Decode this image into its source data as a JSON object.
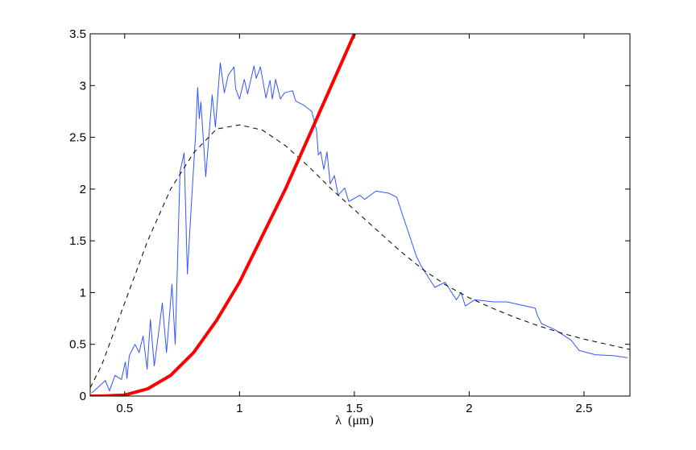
{
  "chart_data": {
    "type": "line",
    "title": "",
    "xlabel": "λ  (μm)",
    "ylabel": "",
    "xlim": [
      0.35,
      2.7
    ],
    "ylim": [
      0,
      3.5
    ],
    "xticks": [
      0.5,
      1,
      1.5,
      2,
      2.5
    ],
    "xtick_labels": [
      "0.5",
      "1",
      "1.5",
      "2",
      "2.5"
    ],
    "yticks": [
      0,
      0.5,
      1,
      1.5,
      2,
      2.5,
      3,
      3.5
    ],
    "ytick_labels": [
      "0",
      "0.5",
      "1",
      "1.5",
      "2",
      "2.5",
      "3",
      "3.5"
    ],
    "grid": false,
    "series": [
      {
        "style": "solid-thin",
        "color": "#3355ff",
        "x": [
          0.357,
          0.416,
          0.434,
          0.458,
          0.486,
          0.503,
          0.51,
          0.52,
          0.545,
          0.563,
          0.58,
          0.598,
          0.612,
          0.629,
          0.65,
          0.664,
          0.682,
          0.706,
          0.72,
          0.741,
          0.759,
          0.773,
          0.79,
          0.808,
          0.818,
          0.825,
          0.832,
          0.853,
          0.881,
          0.895,
          0.916,
          0.934,
          0.951,
          0.976,
          0.983,
          1.0,
          1.021,
          1.035,
          1.063,
          1.073,
          1.091,
          1.115,
          1.133,
          1.143,
          1.157,
          1.178,
          1.196,
          1.231,
          1.245,
          1.28,
          1.315,
          1.336,
          1.343,
          1.353,
          1.367,
          1.381,
          1.395,
          1.413,
          1.43,
          1.458,
          1.476,
          1.524,
          1.545,
          1.594,
          1.65,
          1.685,
          1.71,
          1.745,
          1.77,
          1.79,
          1.85,
          1.895,
          1.944,
          1.965,
          1.983,
          2.024,
          2.105,
          2.164,
          2.245,
          2.287,
          2.297,
          2.315,
          2.374,
          2.444,
          2.479,
          2.549,
          2.63,
          2.69
        ],
        "y": [
          0.03,
          0.15,
          0.05,
          0.2,
          0.16,
          0.33,
          0.17,
          0.39,
          0.5,
          0.42,
          0.58,
          0.26,
          0.74,
          0.29,
          0.65,
          0.9,
          0.42,
          1.08,
          0.5,
          2.17,
          2.35,
          1.18,
          1.83,
          2.5,
          2.98,
          2.68,
          2.84,
          2.12,
          2.91,
          2.6,
          3.22,
          2.93,
          3.1,
          3.18,
          2.97,
          2.87,
          3.06,
          2.92,
          3.19,
          3.07,
          3.18,
          2.88,
          3.05,
          2.87,
          3.06,
          2.87,
          2.93,
          2.95,
          2.85,
          2.81,
          2.75,
          2.56,
          2.33,
          2.36,
          2.19,
          2.36,
          2.05,
          2.13,
          1.94,
          2.01,
          1.88,
          1.94,
          1.9,
          1.98,
          1.96,
          1.92,
          1.75,
          1.52,
          1.35,
          1.26,
          1.05,
          1.1,
          0.93,
          1.0,
          0.87,
          0.93,
          0.91,
          0.91,
          0.87,
          0.85,
          0.78,
          0.7,
          0.64,
          0.54,
          0.44,
          0.4,
          0.39,
          0.37
        ]
      },
      {
        "style": "dashed",
        "color": "#000000",
        "x": [
          0.35,
          0.4,
          0.5,
          0.6,
          0.7,
          0.8,
          0.9,
          1.0,
          1.1,
          1.2,
          1.3,
          1.4,
          1.5,
          1.6,
          1.7,
          1.8,
          1.9,
          2.0,
          2.1,
          2.2,
          2.3,
          2.4,
          2.5,
          2.6,
          2.7
        ],
        "y": [
          0.08,
          0.3,
          0.9,
          1.5,
          2.0,
          2.35,
          2.58,
          2.62,
          2.57,
          2.42,
          2.22,
          2.0,
          1.8,
          1.6,
          1.4,
          1.22,
          1.07,
          0.95,
          0.85,
          0.76,
          0.68,
          0.61,
          0.55,
          0.5,
          0.45
        ]
      },
      {
        "style": "solid-thick",
        "color": "#ff0000",
        "x": [
          0.35,
          0.4,
          0.5,
          0.6,
          0.7,
          0.8,
          0.9,
          1.0,
          1.1,
          1.2,
          1.3,
          1.4,
          1.5,
          1.52
        ],
        "y": [
          0,
          0.001,
          0.01,
          0.07,
          0.2,
          0.42,
          0.73,
          1.1,
          1.55,
          2.0,
          2.5,
          3.0,
          3.5,
          3.6
        ]
      }
    ]
  }
}
